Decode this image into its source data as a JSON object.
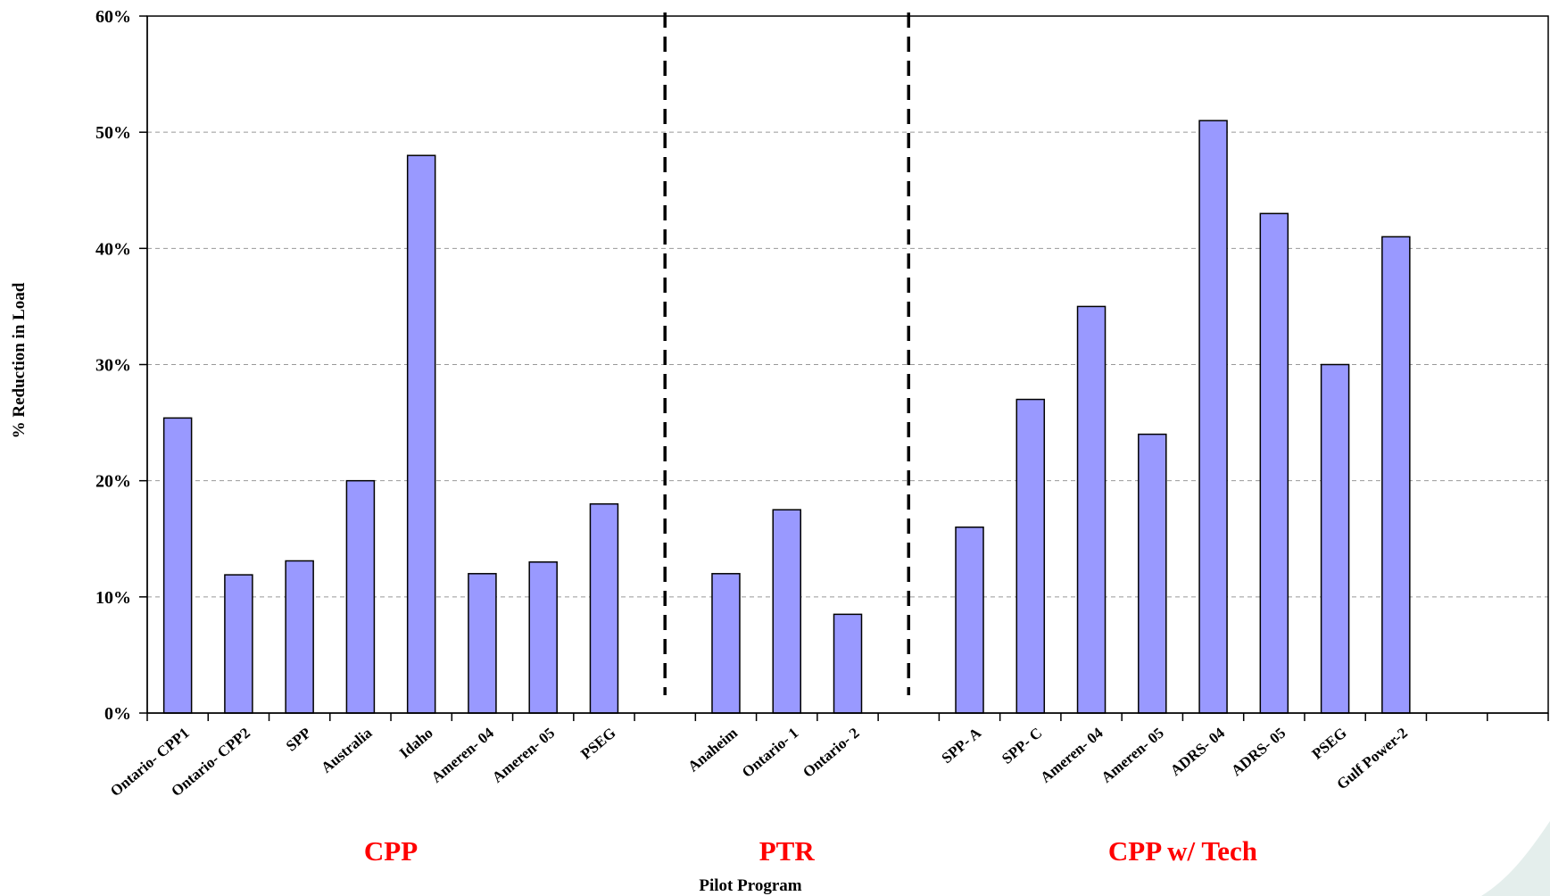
{
  "chart_data": {
    "type": "bar",
    "title": "",
    "xlabel": "Pilot Program",
    "ylabel": "% Reduction in Load",
    "ylim": [
      0,
      0.6
    ],
    "yticks": [
      "0%",
      "10%",
      "20%",
      "30%",
      "40%",
      "50%",
      "60%"
    ],
    "grid": true,
    "slots": 23,
    "bars": [
      {
        "slot": 0,
        "category": "Ontario- CPP1",
        "value": 0.254
      },
      {
        "slot": 1,
        "category": "Ontario- CPP2",
        "value": 0.119
      },
      {
        "slot": 2,
        "category": "SPP",
        "value": 0.131
      },
      {
        "slot": 3,
        "category": "Australia",
        "value": 0.2
      },
      {
        "slot": 4,
        "category": "Idaho",
        "value": 0.48
      },
      {
        "slot": 5,
        "category": "Ameren- 04",
        "value": 0.12
      },
      {
        "slot": 6,
        "category": "Ameren- 05",
        "value": 0.13
      },
      {
        "slot": 7,
        "category": "PSEG",
        "value": 0.18
      },
      {
        "slot": 9,
        "category": "Anaheim",
        "value": 0.12
      },
      {
        "slot": 10,
        "category": "Ontario- 1",
        "value": 0.175
      },
      {
        "slot": 11,
        "category": "Ontario- 2",
        "value": 0.085
      },
      {
        "slot": 13,
        "category": "SPP- A",
        "value": 0.16
      },
      {
        "slot": 14,
        "category": "SPP- C",
        "value": 0.27
      },
      {
        "slot": 15,
        "category": "Ameren- 04",
        "value": 0.35
      },
      {
        "slot": 16,
        "category": "Ameren- 05",
        "value": 0.24
      },
      {
        "slot": 17,
        "category": "ADRS- 04",
        "value": 0.51
      },
      {
        "slot": 18,
        "category": "ADRS- 05",
        "value": 0.43
      },
      {
        "slot": 19,
        "category": "PSEG",
        "value": 0.3
      },
      {
        "slot": 20,
        "category": "Gulf Power-2",
        "value": 0.41
      }
    ],
    "groups": [
      {
        "label": "CPP",
        "first_slot": 0,
        "last_slot": 7
      },
      {
        "label": "PTR",
        "first_slot": 9,
        "last_slot": 11
      },
      {
        "label": "CPP w/ Tech",
        "first_slot": 13,
        "last_slot": 20
      }
    ],
    "separators_after_slot": [
      8,
      12
    ],
    "colors": {
      "bar_fill": "#9999FF",
      "bar_stroke": "#000000",
      "group_label": "#FF0000",
      "grid": "#999999",
      "decoration": "#E4EEEC"
    }
  }
}
